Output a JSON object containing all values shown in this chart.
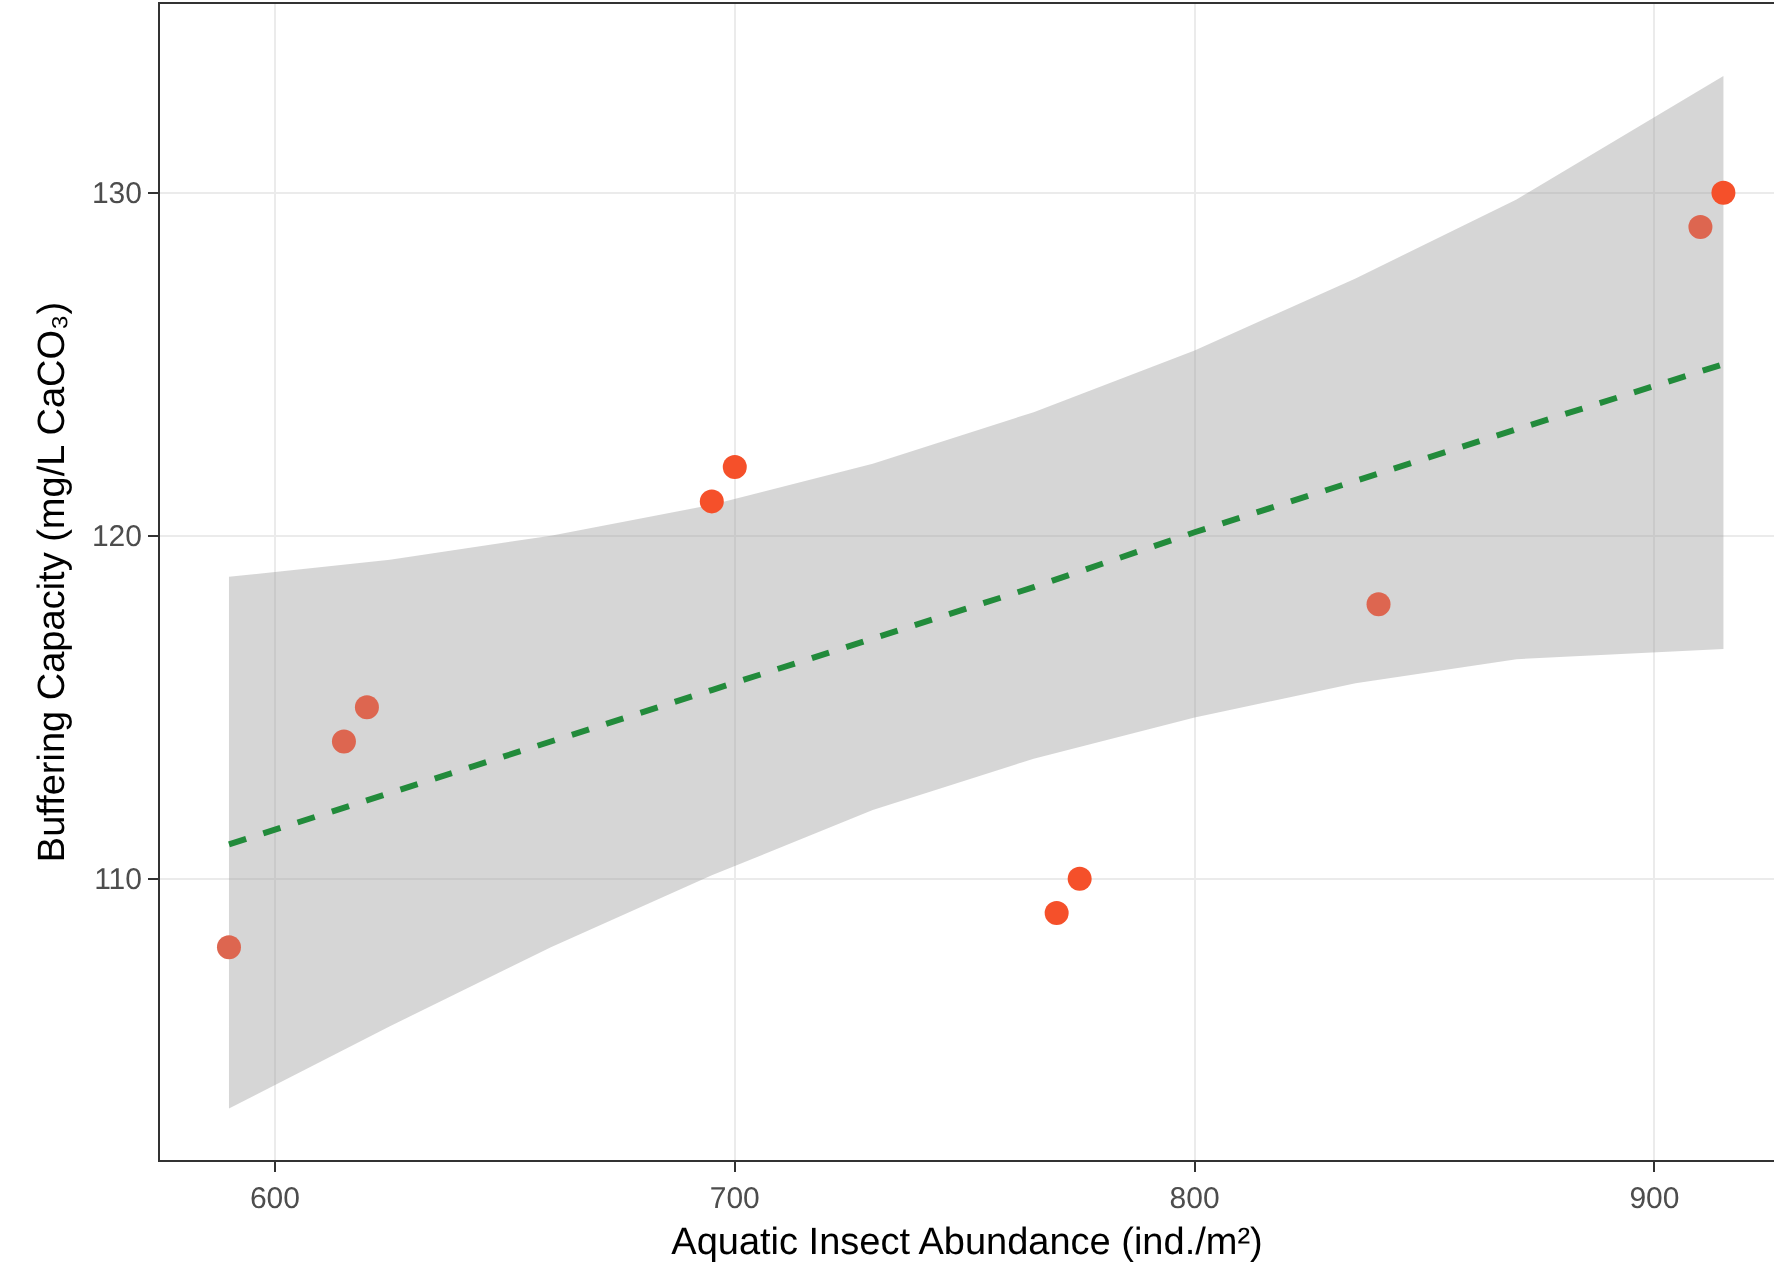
{
  "chart_data": {
    "type": "scatter",
    "xlabel": "Aquatic Insect Abundance (ind./m²)",
    "ylabel": "Buffering Capacity (mg/L CaCO₃)",
    "xlim": [
      575,
      926
    ],
    "xticks": [
      600,
      700,
      800,
      900
    ],
    "ylim": [
      101.8,
      135.5
    ],
    "yticks": [
      110,
      120,
      130
    ],
    "grid": true,
    "marker": "circle",
    "series": [
      {
        "type": "line",
        "marker": "none",
        "line_style": "dashed",
        "color": "#228b3b",
        "x": [
          590,
          625,
          660,
          695,
          730,
          765,
          800,
          835,
          870,
          915
        ],
        "values": [
          111.0,
          112.5,
          114.0,
          115.5,
          117.0,
          118.5,
          120.1,
          121.6,
          123.1,
          125.0
        ],
        "lower": [
          103.3,
          105.7,
          108.0,
          110.1,
          112.0,
          113.5,
          114.7,
          115.7,
          116.4,
          116.7
        ],
        "upper": [
          118.8,
          119.3,
          120.0,
          120.9,
          122.1,
          123.6,
          125.4,
          127.5,
          129.8,
          133.4
        ]
      },
      {
        "x": [
          590,
          615,
          620,
          695,
          700,
          770,
          775,
          840,
          910,
          915
        ],
        "values": [
          108,
          114,
          115,
          121,
          122,
          109,
          110,
          118,
          129,
          130
        ],
        "colors": [
          "#dd6650",
          "#dd6650",
          "#dd6650",
          "#f5502a",
          "#f5502a",
          "#f5502a",
          "#f5502a",
          "#dd6650",
          "#dd6650",
          "#f5502a"
        ]
      }
    ]
  }
}
